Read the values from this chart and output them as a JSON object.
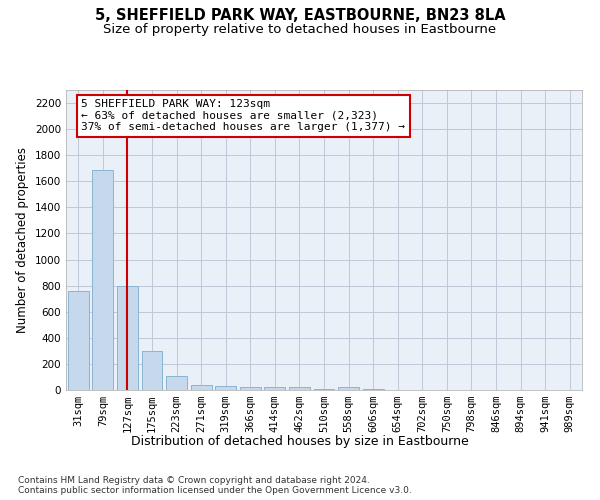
{
  "title": "5, SHEFFIELD PARK WAY, EASTBOURNE, BN23 8LA",
  "subtitle": "Size of property relative to detached houses in Eastbourne",
  "xlabel": "Distribution of detached houses by size in Eastbourne",
  "ylabel": "Number of detached properties",
  "categories": [
    "31sqm",
    "79sqm",
    "127sqm",
    "175sqm",
    "223sqm",
    "271sqm",
    "319sqm",
    "366sqm",
    "414sqm",
    "462sqm",
    "510sqm",
    "558sqm",
    "606sqm",
    "654sqm",
    "702sqm",
    "750sqm",
    "798sqm",
    "846sqm",
    "894sqm",
    "941sqm",
    "989sqm"
  ],
  "values": [
    760,
    1690,
    800,
    300,
    110,
    40,
    30,
    25,
    20,
    20,
    5,
    20,
    5,
    0,
    0,
    0,
    0,
    0,
    0,
    0,
    0
  ],
  "bar_color": "#c5d8ec",
  "bar_edge_color": "#8ab4d4",
  "vline_x_index": 2,
  "vline_color": "#cc0000",
  "annotation_box_text": "5 SHEFFIELD PARK WAY: 123sqm\n← 63% of detached houses are smaller (2,323)\n37% of semi-detached houses are larger (1,377) →",
  "annotation_box_color": "#cc0000",
  "annotation_box_bg": "#ffffff",
  "ylim": [
    0,
    2300
  ],
  "yticks": [
    0,
    200,
    400,
    600,
    800,
    1000,
    1200,
    1400,
    1600,
    1800,
    2000,
    2200
  ],
  "grid_color": "#c0c8d8",
  "bg_color": "#eaf0f8",
  "footer_text": "Contains HM Land Registry data © Crown copyright and database right 2024.\nContains public sector information licensed under the Open Government Licence v3.0.",
  "title_fontsize": 10.5,
  "subtitle_fontsize": 9.5,
  "ylabel_fontsize": 8.5,
  "xlabel_fontsize": 9,
  "tick_fontsize": 7.5,
  "annotation_fontsize": 8
}
